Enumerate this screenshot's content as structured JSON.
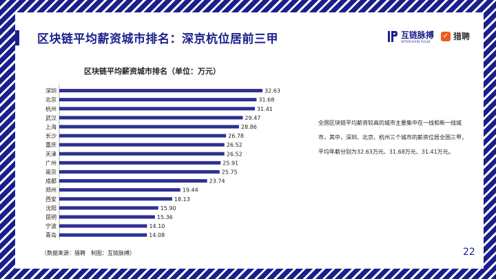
{
  "page_title": "区块链平均薪资城市排名：深京杭位居前三甲",
  "logos": {
    "hulian": {
      "name": "互链脉搏",
      "subtitle": "INTERCHAIN PULSE"
    },
    "liepin": {
      "name": "猎聘",
      "mark": "✓"
    }
  },
  "chart_data": {
    "type": "bar",
    "orientation": "horizontal",
    "title": "区块链平均薪资城市排名（单位：万元）",
    "categories": [
      "深圳",
      "北京",
      "杭州",
      "武汉",
      "上海",
      "长沙",
      "重庆",
      "天津",
      "广州",
      "南京",
      "成都",
      "郑州",
      "西安",
      "沈阳",
      "昆明",
      "宁波",
      "青岛"
    ],
    "values": [
      32.63,
      31.68,
      31.41,
      29.47,
      28.86,
      26.78,
      26.52,
      26.52,
      25.91,
      25.75,
      23.74,
      19.44,
      18.13,
      15.9,
      15.36,
      14.1,
      14.08
    ],
    "value_labels": [
      "32.63",
      "31.68",
      "31.41",
      "29.47",
      "28.86",
      "26.78",
      "26.52",
      "26.52",
      "25.91",
      "25.75",
      "23.74",
      "19.44",
      "18.13",
      "15.90",
      "15.36",
      "14.10",
      "14.08"
    ],
    "xlim": [
      0,
      32.63
    ],
    "bar_color": "#2e3192",
    "grid": false
  },
  "description": "全国区块链平均薪资较高的城市主要集中在一线和新一线城市，其中，深圳、北京、杭州三个城市的薪资位居全国三甲，平均年薪分别为32.63万元、31.68万元、31.41万元。",
  "source": "（数据来源：猎聘　制图：互链脉搏）",
  "page_number": "22",
  "colors": {
    "brand": "#1a1f8c",
    "accent": "#f05a22"
  }
}
